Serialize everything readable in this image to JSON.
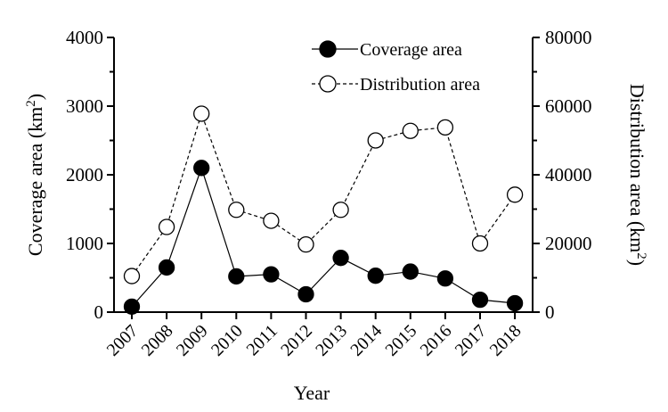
{
  "chart_data": {
    "type": "line",
    "xlabel": "Year",
    "ylabel_left": "Coverage area (km",
    "ylabel_left_sup": "2",
    "ylabel_left_close": ")",
    "ylabel_right": "Distribution area (km",
    "ylabel_right_sup": "2",
    "ylabel_right_close": ")",
    "categories": [
      "2007",
      "2008",
      "2009",
      "2010",
      "2011",
      "2012",
      "2013",
      "2014",
      "2015",
      "2016",
      "2017",
      "2018"
    ],
    "ylim_left": [
      0,
      4000
    ],
    "ylim_right": [
      0,
      80000
    ],
    "yticks_left": [
      0,
      1000,
      2000,
      3000,
      4000
    ],
    "yticks_right": [
      0,
      20000,
      40000,
      60000,
      80000
    ],
    "legend_position": "top-right",
    "series": [
      {
        "name": "Coverage area",
        "axis": "left",
        "marker": "filled-circle",
        "line": "solid",
        "values": [
          80,
          650,
          2100,
          520,
          550,
          260,
          790,
          530,
          590,
          490,
          180,
          130
        ]
      },
      {
        "name": "Distribution area",
        "axis": "right",
        "marker": "open-circle",
        "line": "dashed",
        "values": [
          10500,
          24800,
          57800,
          29800,
          26600,
          19700,
          29800,
          50000,
          52800,
          53800,
          20000,
          34200
        ]
      }
    ]
  }
}
